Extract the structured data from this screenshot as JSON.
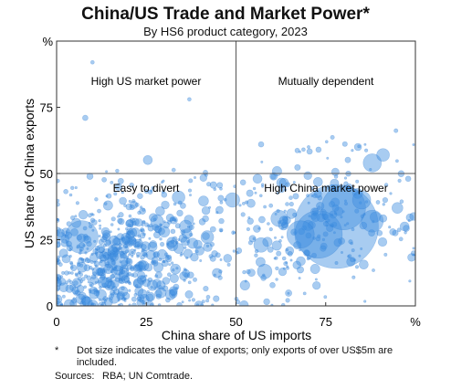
{
  "header": {
    "title": "China/US Trade and Market Power*",
    "subtitle": "By HS6 product category, 2023"
  },
  "footnote": {
    "marker": "*",
    "text": "Dot size indicates the value of exports; only exports of over US$5m are included.",
    "sources_label": "Sources:",
    "sources": "RBA; UN Comtrade."
  },
  "colors": {
    "dot_fill": "#3f8fe0",
    "dot_stroke": "#2a78d0",
    "divider": "#555555",
    "frame": "#333333"
  },
  "chart_data": {
    "type": "scatter",
    "title": "China/US Trade and Market Power*",
    "subtitle": "By HS6 product category, 2023",
    "xlabel": "China share of US imports",
    "ylabel": "US share of China exports",
    "xlim": [
      0,
      100
    ],
    "ylim": [
      0,
      100
    ],
    "x_ticks": [
      "0",
      "25",
      "50",
      "75",
      "%"
    ],
    "y_ticks": [
      "0",
      "25",
      "50",
      "75",
      "%"
    ],
    "grid": false,
    "reference_lines": {
      "x": 50,
      "y": 50
    },
    "quadrant_labels": {
      "top_left": "High US market power",
      "top_right": "Mutually dependent",
      "bottom_left": "Easy to divert",
      "bottom_right": "High China market power"
    },
    "size_encoding": "value of exports",
    "large_points": [
      {
        "x": 78,
        "y": 30,
        "size": 46
      },
      {
        "x": 73,
        "y": 27,
        "size": 26
      },
      {
        "x": 80,
        "y": 37,
        "size": 24
      },
      {
        "x": 7,
        "y": 26,
        "size": 18
      },
      {
        "x": 68,
        "y": 27,
        "size": 15
      },
      {
        "x": 88,
        "y": 32,
        "size": 12
      },
      {
        "x": 85,
        "y": 40,
        "size": 10
      },
      {
        "x": 17,
        "y": 17,
        "size": 11
      },
      {
        "x": 88,
        "y": 54,
        "size": 10
      },
      {
        "x": 62,
        "y": 33,
        "size": 9
      },
      {
        "x": 57,
        "y": 23,
        "size": 8
      },
      {
        "x": 49,
        "y": 40,
        "size": 8
      },
      {
        "x": 28,
        "y": 32,
        "size": 7
      },
      {
        "x": 34,
        "y": 41,
        "size": 7
      },
      {
        "x": 91,
        "y": 57,
        "size": 7
      },
      {
        "x": 95,
        "y": 37,
        "size": 6
      },
      {
        "x": 58,
        "y": 13,
        "size": 8
      },
      {
        "x": 42,
        "y": 26,
        "size": 7
      },
      {
        "x": 36,
        "y": 30,
        "size": 7
      },
      {
        "x": 16,
        "y": 3,
        "size": 6
      },
      {
        "x": 30,
        "y": 28,
        "size": 6
      },
      {
        "x": 13,
        "y": 9,
        "size": 6
      },
      {
        "x": 56,
        "y": 48,
        "size": 5
      },
      {
        "x": 2,
        "y": 7,
        "size": 5
      },
      {
        "x": 8,
        "y": 71,
        "size": 3
      },
      {
        "x": 10,
        "y": 92,
        "size": 2
      },
      {
        "x": 37,
        "y": 78,
        "size": 2
      },
      {
        "x": 84,
        "y": 60,
        "size": 4
      },
      {
        "x": 57,
        "y": 61,
        "size": 3
      },
      {
        "x": 73,
        "y": 59,
        "size": 3
      },
      {
        "x": 98,
        "y": 48,
        "size": 3
      },
      {
        "x": 97,
        "y": 30,
        "size": 5
      }
    ],
    "clusters": [
      {
        "x": 18,
        "y": 18,
        "sx": 10,
        "sy": 8,
        "count": 260,
        "note": "dense cluster, easy to divert"
      },
      {
        "x": 20,
        "y": 28,
        "sx": 14,
        "sy": 10,
        "count": 160,
        "note": "lower-left spread"
      },
      {
        "x": 32,
        "y": 22,
        "sx": 10,
        "sy": 10,
        "count": 90,
        "note": "mid-left spread"
      },
      {
        "x": 8,
        "y": 8,
        "sx": 6,
        "sy": 6,
        "count": 60,
        "note": "near origin"
      },
      {
        "x": 78,
        "y": 30,
        "sx": 12,
        "sy": 10,
        "count": 140,
        "note": "high China market power"
      },
      {
        "x": 62,
        "y": 22,
        "sx": 8,
        "sy": 10,
        "count": 70,
        "note": "lower-right spread"
      },
      {
        "x": 75,
        "y": 57,
        "sx": 12,
        "sy": 4,
        "count": 22,
        "note": "mutually dependent"
      },
      {
        "x": 44,
        "y": 46,
        "sx": 20,
        "sy": 4,
        "count": 40,
        "note": "near 50 line"
      },
      {
        "x": 25,
        "y": 3,
        "sx": 20,
        "sy": 2,
        "count": 70,
        "note": "along x axis"
      }
    ]
  }
}
